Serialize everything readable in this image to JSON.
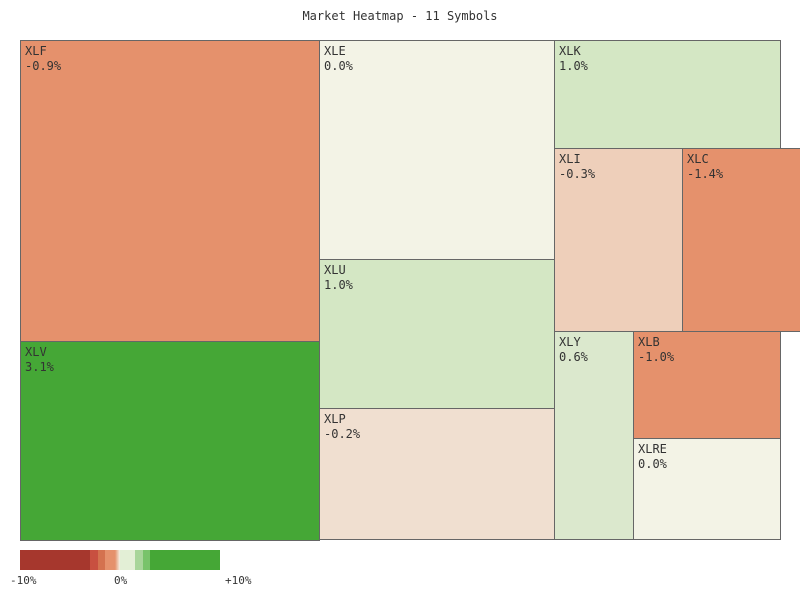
{
  "chart_data": {
    "type": "heatmap",
    "subtype": "treemap",
    "title": "Market Heatmap - 11 Symbols",
    "tiles": [
      {
        "symbol": "XLF",
        "change": -0.9,
        "label": "-0.9%",
        "color": "#e5916c"
      },
      {
        "symbol": "XLV",
        "change": 3.1,
        "label": "3.1%",
        "color": "#45a736"
      },
      {
        "symbol": "XLE",
        "change": 0.0,
        "label": "0.0%",
        "color": "#f3f3e6"
      },
      {
        "symbol": "XLU",
        "change": 1.0,
        "label": "1.0%",
        "color": "#d4e7c4"
      },
      {
        "symbol": "XLP",
        "change": -0.2,
        "label": "-0.2%",
        "color": "#f0dfd0"
      },
      {
        "symbol": "XLK",
        "change": 1.0,
        "label": "1.0%",
        "color": "#d4e7c4"
      },
      {
        "symbol": "XLI",
        "change": -0.3,
        "label": "-0.3%",
        "color": "#eecfba"
      },
      {
        "symbol": "XLC",
        "change": -1.4,
        "label": "-1.4%",
        "color": "#e5916c"
      },
      {
        "symbol": "XLY",
        "change": 0.6,
        "label": "0.6%",
        "color": "#dbe8cd"
      },
      {
        "symbol": "XLB",
        "change": -1.0,
        "label": "-1.0%",
        "color": "#e5916c"
      },
      {
        "symbol": "XLRE",
        "change": 0.0,
        "label": "0.0%",
        "color": "#f3f3e6"
      }
    ],
    "legend": {
      "min_label": "-10%",
      "mid_label": "0%",
      "max_label": "+10%",
      "range": [
        -10,
        10
      ],
      "colors": [
        "#a6372d",
        "#c85040",
        "#d4724f",
        "#e5916c",
        "#f3f3e6",
        "#e3efd6",
        "#a8d59a",
        "#78c36a",
        "#45a736"
      ]
    }
  }
}
